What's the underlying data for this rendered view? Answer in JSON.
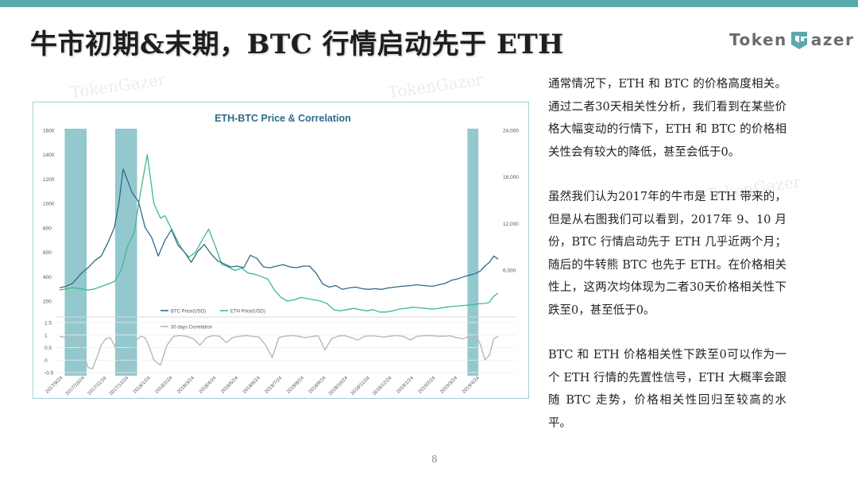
{
  "slide": {
    "title": "牛市初期&末期，BTC 行情启动先于 ETH",
    "page_number": "8",
    "logo": {
      "left": "Token",
      "right": "azer"
    },
    "watermark": "TokenGazer",
    "accent_color": "#5aa9ad",
    "paragraphs": [
      "通常情况下，ETH 和 BTC 的价格高度相关。通过二者30天相关性分析，我们看到在某些价格大幅变动的行情下，ETH 和 BTC 的价格相关性会有较大的降低，甚至会低于0。",
      "虽然我们认为2017年的牛市是 ETH 带来的，但是从右图我们可以看到，2017年 9、10 月份，BTC 行情启动先于 ETH 几乎近两个月；随后的牛转熊 BTC 也先于 ETH。在价格相关性上，这两次均体现为二者30天价格相关性下跌至0，甚至低于0。",
      "BTC 和 ETH 价格相关性下跌至0可以作为一个 ETH 行情的先置性信号，ETH 大概率会跟随 BTC 走势，价格相关性回归至较高的水平。"
    ]
  },
  "chart_data": {
    "type": "line",
    "title": "ETH-BTC Price & Correlation",
    "x_ticks": [
      "2017/9/24",
      "2017/10/24",
      "2017/11/24",
      "2017/12/24",
      "2018/1/24",
      "2018/2/24",
      "2018/3/24",
      "2018/4/24",
      "2018/5/24",
      "2018/6/24",
      "2018/7/24",
      "2018/8/24",
      "2018/9/24",
      "2018/10/24",
      "2018/11/24",
      "2018/12/24",
      "2019/1/24",
      "2019/2/24",
      "2019/3/24",
      "2019/4/24"
    ],
    "left_axis": {
      "ticks": [
        "1600",
        "1400",
        "1200",
        "1000",
        "800",
        "600",
        "400",
        "200"
      ],
      "ylim": [
        200,
        1600
      ]
    },
    "right_axis": {
      "ticks": [
        "24,000",
        "18,000",
        "12,000",
        "6,000"
      ],
      "ylim": [
        2000,
        24000
      ]
    },
    "corr_axis": {
      "ticks": [
        "1.5",
        "1",
        "0.5",
        "0",
        "-0.5"
      ],
      "ylim": [
        -0.5,
        1.5
      ]
    },
    "highlight_ranges": [
      {
        "from": "2017/10/1",
        "to": "2017/11/1"
      },
      {
        "from": "2017/12/10",
        "to": "2018/1/10"
      },
      {
        "from": "2019/4/12",
        "to": "2019/4/27"
      }
    ],
    "series": [
      {
        "name": "BTC Price(USD)",
        "axis": "right",
        "color": "#2e6b8a",
        "x_months": [
          0,
          0.3,
          0.6,
          1,
          1.3,
          1.6,
          1.9,
          2.2,
          2.5,
          2.7,
          2.9,
          3.1,
          3.3,
          3.6,
          3.9,
          4.2,
          4.5,
          4.8,
          5.1,
          5.4,
          5.7,
          6,
          6.3,
          6.6,
          6.9,
          7.2,
          7.5,
          7.8,
          8.1,
          8.4,
          8.7,
          9,
          9.3,
          9.6,
          9.9,
          10.2,
          10.5,
          10.8,
          11.1,
          11.4,
          11.7,
          12,
          12.3,
          12.6,
          12.9,
          13.2,
          13.5,
          13.8,
          14.1,
          14.4,
          14.7,
          15,
          15.3,
          15.6,
          16,
          16.3,
          16.6,
          17,
          17.3,
          17.6,
          17.9,
          18.2,
          18.5,
          18.8,
          19,
          19.2,
          19.4,
          19.6,
          19.8,
          20
        ],
        "values": [
          3700,
          3900,
          4300,
          5600,
          6300,
          7200,
          7800,
          9500,
          11500,
          14500,
          19000,
          17500,
          16000,
          14800,
          11500,
          10200,
          7800,
          9800,
          11200,
          9200,
          8300,
          7000,
          8400,
          9300,
          8100,
          7200,
          6800,
          6400,
          6500,
          6300,
          7900,
          7500,
          6400,
          6300,
          6500,
          6700,
          6400,
          6300,
          6500,
          6500,
          5600,
          4200,
          3800,
          4000,
          3500,
          3700,
          3800,
          3600,
          3500,
          3600,
          3500,
          3700,
          3800,
          3900,
          4000,
          4100,
          4000,
          3900,
          4100,
          4300,
          4700,
          4900,
          5200,
          5400,
          5600,
          5900,
          6500,
          7000,
          7800,
          7400
        ]
      },
      {
        "name": "ETH Price(USD)",
        "axis": "left",
        "color": "#3dbb8a",
        "x_months": [
          0,
          0.3,
          0.6,
          1,
          1.3,
          1.6,
          1.9,
          2.2,
          2.5,
          2.8,
          3.1,
          3.4,
          3.7,
          4,
          4.3,
          4.6,
          4.8,
          5,
          5.3,
          5.6,
          5.9,
          6.2,
          6.5,
          6.8,
          7.1,
          7.4,
          7.7,
          8,
          8.3,
          8.6,
          8.9,
          9.2,
          9.5,
          9.8,
          10.1,
          10.4,
          10.7,
          11,
          11.3,
          11.6,
          11.9,
          12.2,
          12.5,
          12.8,
          13.1,
          13.4,
          13.7,
          14,
          14.3,
          14.6,
          14.9,
          15.2,
          15.5,
          15.8,
          16.1,
          16.4,
          16.7,
          17,
          17.3,
          17.6,
          17.9,
          18.2,
          18.5,
          18.8,
          19,
          19.2,
          19.4,
          19.6,
          19.8,
          20
        ],
        "values": [
          290,
          300,
          310,
          300,
          290,
          300,
          320,
          340,
          360,
          450,
          650,
          760,
          1100,
          1400,
          1000,
          880,
          900,
          830,
          720,
          620,
          560,
          600,
          700,
          790,
          650,
          500,
          480,
          450,
          470,
          430,
          420,
          400,
          380,
          290,
          230,
          200,
          210,
          230,
          220,
          210,
          200,
          180,
          130,
          120,
          130,
          140,
          130,
          120,
          130,
          110,
          110,
          120,
          135,
          140,
          150,
          145,
          140,
          135,
          140,
          150,
          155,
          160,
          165,
          170,
          175,
          180,
          180,
          190,
          240,
          265
        ]
      },
      {
        "name": "30 days Correlation",
        "axis": "corr",
        "color": "#b8b8b8",
        "x_months": [
          0,
          0.3,
          0.6,
          0.9,
          1.1,
          1.3,
          1.5,
          1.7,
          1.9,
          2.1,
          2.3,
          2.5,
          2.7,
          2.9,
          3.1,
          3.3,
          3.5,
          3.7,
          3.9,
          4.1,
          4.3,
          4.6,
          4.9,
          5.2,
          5.5,
          5.8,
          6.1,
          6.4,
          6.7,
          7,
          7.3,
          7.6,
          7.9,
          8.2,
          8.5,
          8.8,
          9.1,
          9.4,
          9.7,
          10,
          10.3,
          10.6,
          10.9,
          11.2,
          11.5,
          11.8,
          12.1,
          12.4,
          12.7,
          13,
          13.3,
          13.6,
          13.9,
          14.2,
          14.5,
          14.8,
          15.1,
          15.4,
          15.7,
          16,
          16.3,
          16.6,
          16.9,
          17.2,
          17.5,
          17.8,
          18.1,
          18.4,
          18.7,
          19,
          19.2,
          19.4,
          19.6,
          19.8,
          20
        ],
        "values": [
          0.95,
          0.9,
          0.85,
          0.7,
          0.2,
          -0.3,
          -0.35,
          0.1,
          0.6,
          0.85,
          0.9,
          0.6,
          0.1,
          -0.35,
          -0.3,
          0.3,
          0.8,
          0.95,
          0.9,
          0.5,
          0.0,
          -0.2,
          0.6,
          0.95,
          0.98,
          0.95,
          0.85,
          0.6,
          0.9,
          0.98,
          0.95,
          0.7,
          0.9,
          0.95,
          0.98,
          0.95,
          0.92,
          0.6,
          0.1,
          0.9,
          0.96,
          0.98,
          0.95,
          0.9,
          0.94,
          0.97,
          0.4,
          0.85,
          0.96,
          0.98,
          0.9,
          0.8,
          0.95,
          0.97,
          0.95,
          0.92,
          0.96,
          0.98,
          0.94,
          0.8,
          0.95,
          0.97,
          0.98,
          0.96,
          0.95,
          0.97,
          0.9,
          0.85,
          0.95,
          0.98,
          0.6,
          0.0,
          0.2,
          0.85,
          0.95
        ]
      }
    ]
  }
}
